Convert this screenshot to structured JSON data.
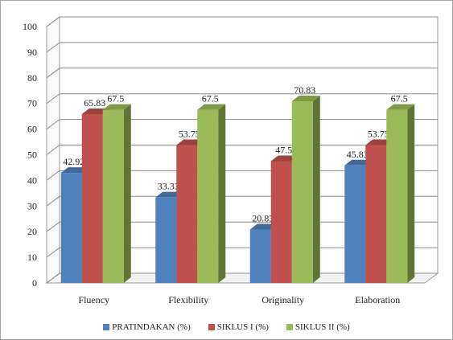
{
  "chart_data": {
    "type": "bar",
    "categories": [
      "Fluency",
      "Flexibility",
      "Originality",
      "Elaboration"
    ],
    "series": [
      {
        "name": "PRATINDAKAN (%)",
        "values": [
          42.92,
          33.33,
          20.83,
          45.83
        ],
        "labels": [
          "42.92",
          "33.33",
          "20.83",
          "45.83"
        ],
        "color": "#4f81bd"
      },
      {
        "name": "SIKLUS I (%)",
        "values": [
          65.83,
          53.75,
          47.5,
          53.75
        ],
        "labels": [
          "65.83",
          "53.75",
          "47.5",
          "53.75"
        ],
        "color": "#c0504d"
      },
      {
        "name": "SIKLUS II (%)",
        "values": [
          67.5,
          67.5,
          70.83,
          67.5
        ],
        "labels": [
          "67.5",
          "67.5",
          "70.83",
          "67.5"
        ],
        "color": "#9bbb59"
      }
    ],
    "yticks": [
      "0",
      "10",
      "20",
      "30",
      "40",
      "50",
      "60",
      "70",
      "80",
      "90",
      "100"
    ],
    "ylim": [
      0,
      100
    ],
    "grid": true,
    "legend_position": "bottom",
    "title": "",
    "xlabel": "",
    "ylabel": ""
  }
}
